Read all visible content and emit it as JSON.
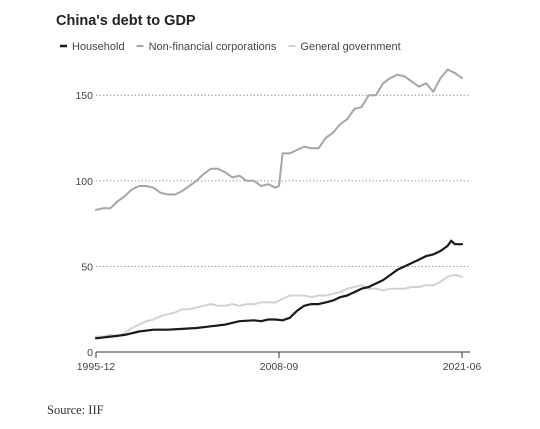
{
  "chart_data": {
    "type": "line",
    "title": "China's debt to GDP",
    "xlabel": "",
    "ylabel": "",
    "x_tick_labels": [
      "1995-12",
      "2008-09",
      "2021-06"
    ],
    "x_tick_positions": [
      0,
      51,
      102
    ],
    "y_ticks": [
      0,
      50,
      100,
      150
    ],
    "ylim": [
      0,
      170
    ],
    "grid": true,
    "legend_position": "top-left",
    "series": [
      {
        "name": "Household",
        "color": "#1a1a1a",
        "values": [
          [
            0,
            8
          ],
          [
            4,
            9
          ],
          [
            8,
            10
          ],
          [
            12,
            12
          ],
          [
            16,
            13
          ],
          [
            20,
            13
          ],
          [
            24,
            13.5
          ],
          [
            28,
            14
          ],
          [
            32,
            15
          ],
          [
            36,
            16
          ],
          [
            40,
            18
          ],
          [
            44,
            18.5
          ],
          [
            46,
            18
          ],
          [
            48,
            19
          ],
          [
            50,
            19
          ],
          [
            52,
            18.5
          ],
          [
            54,
            20
          ],
          [
            56,
            24
          ],
          [
            58,
            27
          ],
          [
            60,
            28
          ],
          [
            62,
            28
          ],
          [
            64,
            29
          ],
          [
            66,
            30
          ],
          [
            68,
            32
          ],
          [
            70,
            33
          ],
          [
            72,
            35
          ],
          [
            74,
            37
          ],
          [
            76,
            38
          ],
          [
            78,
            40
          ],
          [
            80,
            42
          ],
          [
            82,
            45
          ],
          [
            84,
            48
          ],
          [
            86,
            50
          ],
          [
            88,
            52
          ],
          [
            90,
            54
          ],
          [
            92,
            56
          ],
          [
            94,
            57
          ],
          [
            96,
            59
          ],
          [
            98,
            62
          ],
          [
            99,
            65
          ],
          [
            100,
            63
          ],
          [
            102,
            63
          ]
        ]
      },
      {
        "name": "Non-financial corporations",
        "color": "#a6a6a6",
        "values": [
          [
            0,
            83
          ],
          [
            2,
            84
          ],
          [
            4,
            84
          ],
          [
            6,
            88
          ],
          [
            8,
            91
          ],
          [
            10,
            95
          ],
          [
            12,
            97
          ],
          [
            14,
            97
          ],
          [
            16,
            96
          ],
          [
            18,
            93
          ],
          [
            20,
            92
          ],
          [
            22,
            92
          ],
          [
            24,
            94
          ],
          [
            26,
            97
          ],
          [
            28,
            100
          ],
          [
            30,
            104
          ],
          [
            32,
            107
          ],
          [
            34,
            107
          ],
          [
            36,
            105
          ],
          [
            38,
            102
          ],
          [
            40,
            103
          ],
          [
            42,
            100
          ],
          [
            44,
            100
          ],
          [
            46,
            97
          ],
          [
            48,
            98
          ],
          [
            50,
            96
          ],
          [
            51,
            97
          ],
          [
            52,
            116
          ],
          [
            54,
            116
          ],
          [
            56,
            118
          ],
          [
            58,
            120
          ],
          [
            60,
            119
          ],
          [
            62,
            119
          ],
          [
            64,
            125
          ],
          [
            66,
            128
          ],
          [
            68,
            133
          ],
          [
            70,
            136
          ],
          [
            72,
            142
          ],
          [
            74,
            143
          ],
          [
            76,
            150
          ],
          [
            78,
            150
          ],
          [
            80,
            157
          ],
          [
            82,
            160
          ],
          [
            84,
            162
          ],
          [
            86,
            161
          ],
          [
            88,
            158
          ],
          [
            90,
            155
          ],
          [
            92,
            157
          ],
          [
            94,
            152
          ],
          [
            96,
            160
          ],
          [
            98,
            165
          ],
          [
            100,
            163
          ],
          [
            102,
            160
          ]
        ]
      },
      {
        "name": "General government",
        "color": "#d2d2d2",
        "values": [
          [
            0,
            9
          ],
          [
            2,
            9
          ],
          [
            4,
            10
          ],
          [
            6,
            9
          ],
          [
            8,
            11
          ],
          [
            10,
            14
          ],
          [
            12,
            16
          ],
          [
            14,
            18
          ],
          [
            16,
            19
          ],
          [
            18,
            21
          ],
          [
            20,
            22
          ],
          [
            22,
            23
          ],
          [
            24,
            25
          ],
          [
            26,
            25
          ],
          [
            28,
            26
          ],
          [
            30,
            27
          ],
          [
            32,
            28
          ],
          [
            34,
            27
          ],
          [
            36,
            27
          ],
          [
            38,
            28
          ],
          [
            40,
            27
          ],
          [
            42,
            28
          ],
          [
            44,
            28
          ],
          [
            46,
            29
          ],
          [
            48,
            29
          ],
          [
            50,
            29
          ],
          [
            52,
            31
          ],
          [
            54,
            33
          ],
          [
            56,
            33
          ],
          [
            58,
            33
          ],
          [
            60,
            32
          ],
          [
            62,
            33
          ],
          [
            64,
            33
          ],
          [
            66,
            34
          ],
          [
            68,
            35
          ],
          [
            70,
            37
          ],
          [
            72,
            38
          ],
          [
            74,
            39
          ],
          [
            76,
            37
          ],
          [
            78,
            37
          ],
          [
            80,
            36
          ],
          [
            82,
            37
          ],
          [
            84,
            37
          ],
          [
            86,
            37
          ],
          [
            88,
            38
          ],
          [
            90,
            38
          ],
          [
            92,
            39
          ],
          [
            94,
            39
          ],
          [
            96,
            41
          ],
          [
            98,
            44
          ],
          [
            100,
            45
          ],
          [
            102,
            44
          ]
        ]
      }
    ]
  },
  "source": "Source: IIF"
}
